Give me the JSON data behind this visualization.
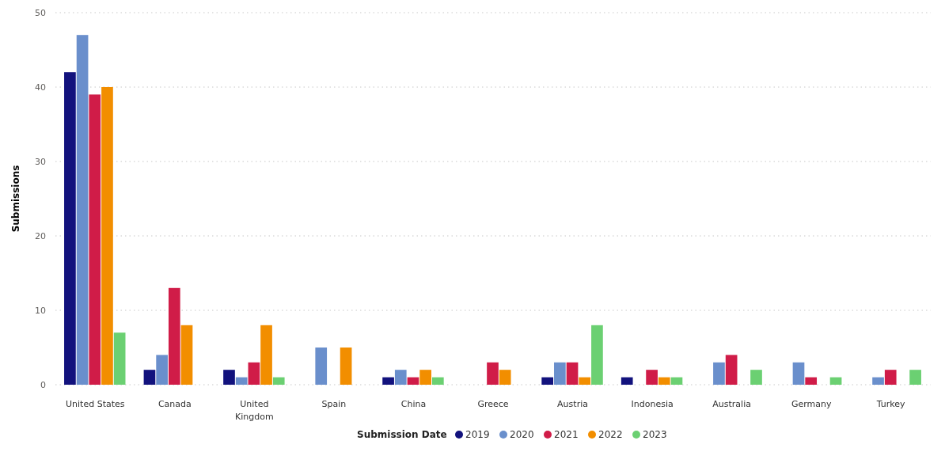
{
  "chart_data": {
    "type": "bar",
    "xlabel": null,
    "ylabel": "Submissions",
    "legend_title": "Submission Date",
    "legend": "bottom",
    "grid": "y",
    "ylim": [
      0,
      50
    ],
    "yticks": [
      0,
      10,
      20,
      30,
      40,
      50
    ],
    "categories": [
      "United States",
      "Canada",
      "United Kingdom",
      "Spain",
      "China",
      "Greece",
      "Austria",
      "Indonesia",
      "Australia",
      "Germany",
      "Turkey"
    ],
    "series": [
      {
        "name": "2019",
        "color": "#12127d",
        "values": [
          42,
          2,
          2,
          null,
          1,
          null,
          1,
          1,
          null,
          null,
          null
        ]
      },
      {
        "name": "2020",
        "color": "#6a8fcc",
        "values": [
          47,
          4,
          1,
          5,
          2,
          null,
          3,
          null,
          3,
          3,
          1
        ]
      },
      {
        "name": "2021",
        "color": "#d01c48",
        "values": [
          39,
          13,
          3,
          null,
          1,
          3,
          3,
          2,
          4,
          1,
          2
        ]
      },
      {
        "name": "2022",
        "color": "#f28e00",
        "values": [
          40,
          8,
          8,
          5,
          2,
          2,
          1,
          1,
          null,
          null,
          null
        ]
      },
      {
        "name": "2023",
        "color": "#6bd072",
        "values": [
          7,
          null,
          1,
          null,
          1,
          null,
          8,
          1,
          2,
          1,
          2
        ]
      }
    ]
  }
}
